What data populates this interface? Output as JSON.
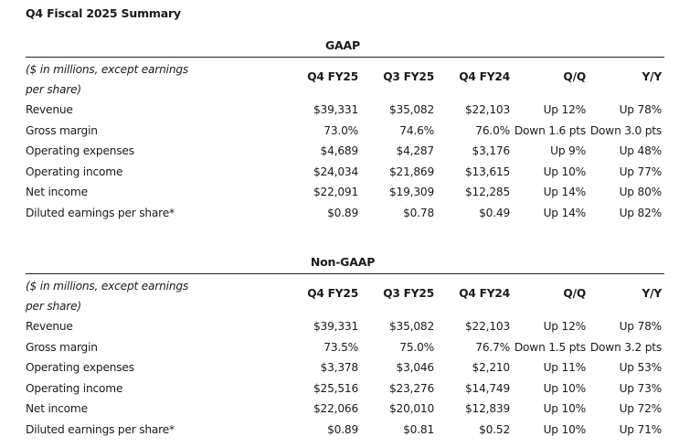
{
  "title": "Q4 Fiscal 2025 Summary",
  "tables": [
    {
      "heading": "GAAP",
      "label_header": "($ in millions, except earnings per share)",
      "columns": [
        "Q4 FY25",
        "Q3 FY25",
        "Q4 FY24",
        "Q/Q",
        "Y/Y"
      ],
      "rows": [
        {
          "label": "Revenue",
          "values": [
            "$39,331",
            "$35,082",
            "$22,103",
            "Up 12%",
            "Up 78%"
          ]
        },
        {
          "label": "Gross margin",
          "values": [
            "73.0%",
            "74.6%",
            "76.0%",
            "Down 1.6 pts",
            "Down 3.0 pts"
          ]
        },
        {
          "label": "Operating expenses",
          "values": [
            "$4,689",
            "$4,287",
            "$3,176",
            "Up 9%",
            "Up 48%"
          ]
        },
        {
          "label": "Operating income",
          "values": [
            "$24,034",
            "$21,869",
            "$13,615",
            "Up 10%",
            "Up 77%"
          ]
        },
        {
          "label": "Net income",
          "values": [
            "$22,091",
            "$19,309",
            "$12,285",
            "Up 14%",
            "Up 80%"
          ]
        },
        {
          "label": "Diluted earnings per share*",
          "values": [
            "$0.89",
            "$0.78",
            "$0.49",
            "Up 14%",
            "Up 82%"
          ]
        }
      ]
    },
    {
      "heading": "Non-GAAP",
      "label_header": "($ in millions, except earnings per share)",
      "columns": [
        "Q4 FY25",
        "Q3 FY25",
        "Q4 FY24",
        "Q/Q",
        "Y/Y"
      ],
      "rows": [
        {
          "label": "Revenue",
          "values": [
            "$39,331",
            "$35,082",
            "$22,103",
            "Up 12%",
            "Up 78%"
          ]
        },
        {
          "label": "Gross margin",
          "values": [
            "73.5%",
            "75.0%",
            "76.7%",
            "Down 1.5 pts",
            "Down 3.2 pts"
          ]
        },
        {
          "label": "Operating expenses",
          "values": [
            "$3,378",
            "$3,046",
            "$2,210",
            "Up 11%",
            "Up 53%"
          ]
        },
        {
          "label": "Operating income",
          "values": [
            "$25,516",
            "$23,276",
            "$14,749",
            "Up 10%",
            "Up 73%"
          ]
        },
        {
          "label": "Net income",
          "values": [
            "$22,066",
            "$20,010",
            "$12,839",
            "Up 10%",
            "Up 72%"
          ]
        },
        {
          "label": "Diluted earnings per share*",
          "values": [
            "$0.89",
            "$0.81",
            "$0.52",
            "Up 10%",
            "Up 71%"
          ]
        }
      ]
    }
  ]
}
